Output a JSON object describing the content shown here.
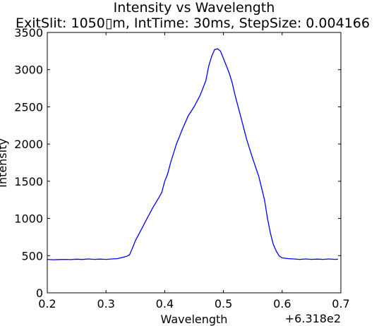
{
  "chart_data": {
    "type": "line",
    "title": "Intensity vs Wavelength",
    "subtitle": "ExitSlit: 1050▯m, IntTime: 30ms, StepSize: 0.004166",
    "xlabel": "Wavelength",
    "ylabel": "Intensity",
    "x_offset_label": "+6.318e2",
    "xlim": [
      0.2,
      0.7
    ],
    "ylim": [
      0,
      3500
    ],
    "x_ticks": [
      "0.2",
      "0.3",
      "0.4",
      "0.5",
      "0.6",
      "0.7"
    ],
    "y_ticks": [
      "0",
      "500",
      "1000",
      "1500",
      "2000",
      "2500",
      "3000",
      "3500"
    ],
    "grid": false,
    "line_color": "#0000ff",
    "series": [
      {
        "x": [
          0.2,
          0.21,
          0.22,
          0.23,
          0.24,
          0.25,
          0.26,
          0.27,
          0.28,
          0.29,
          0.3,
          0.31,
          0.32,
          0.325,
          0.33,
          0.335,
          0.34,
          0.345,
          0.35,
          0.36,
          0.37,
          0.38,
          0.39,
          0.395,
          0.4,
          0.405,
          0.41,
          0.42,
          0.43,
          0.44,
          0.45,
          0.46,
          0.465,
          0.47,
          0.475,
          0.48,
          0.485,
          0.49,
          0.495,
          0.5,
          0.505,
          0.51,
          0.515,
          0.52,
          0.53,
          0.54,
          0.55,
          0.56,
          0.57,
          0.575,
          0.58,
          0.585,
          0.59,
          0.595,
          0.6,
          0.605,
          0.61,
          0.62,
          0.63,
          0.64,
          0.65,
          0.66,
          0.67,
          0.68,
          0.69,
          0.695
        ],
        "y": [
          450,
          445,
          448,
          450,
          447,
          452,
          449,
          455,
          450,
          453,
          450,
          455,
          460,
          470,
          480,
          490,
          510,
          600,
          700,
          850,
          1000,
          1150,
          1280,
          1350,
          1500,
          1600,
          1750,
          2000,
          2200,
          2380,
          2500,
          2650,
          2750,
          2850,
          3050,
          3180,
          3270,
          3280,
          3250,
          3150,
          3050,
          2950,
          2820,
          2650,
          2350,
          2050,
          1800,
          1570,
          1250,
          1000,
          800,
          650,
          560,
          495,
          470,
          465,
          460,
          455,
          450,
          455,
          450,
          453,
          450,
          455,
          450,
          452
        ]
      }
    ]
  }
}
